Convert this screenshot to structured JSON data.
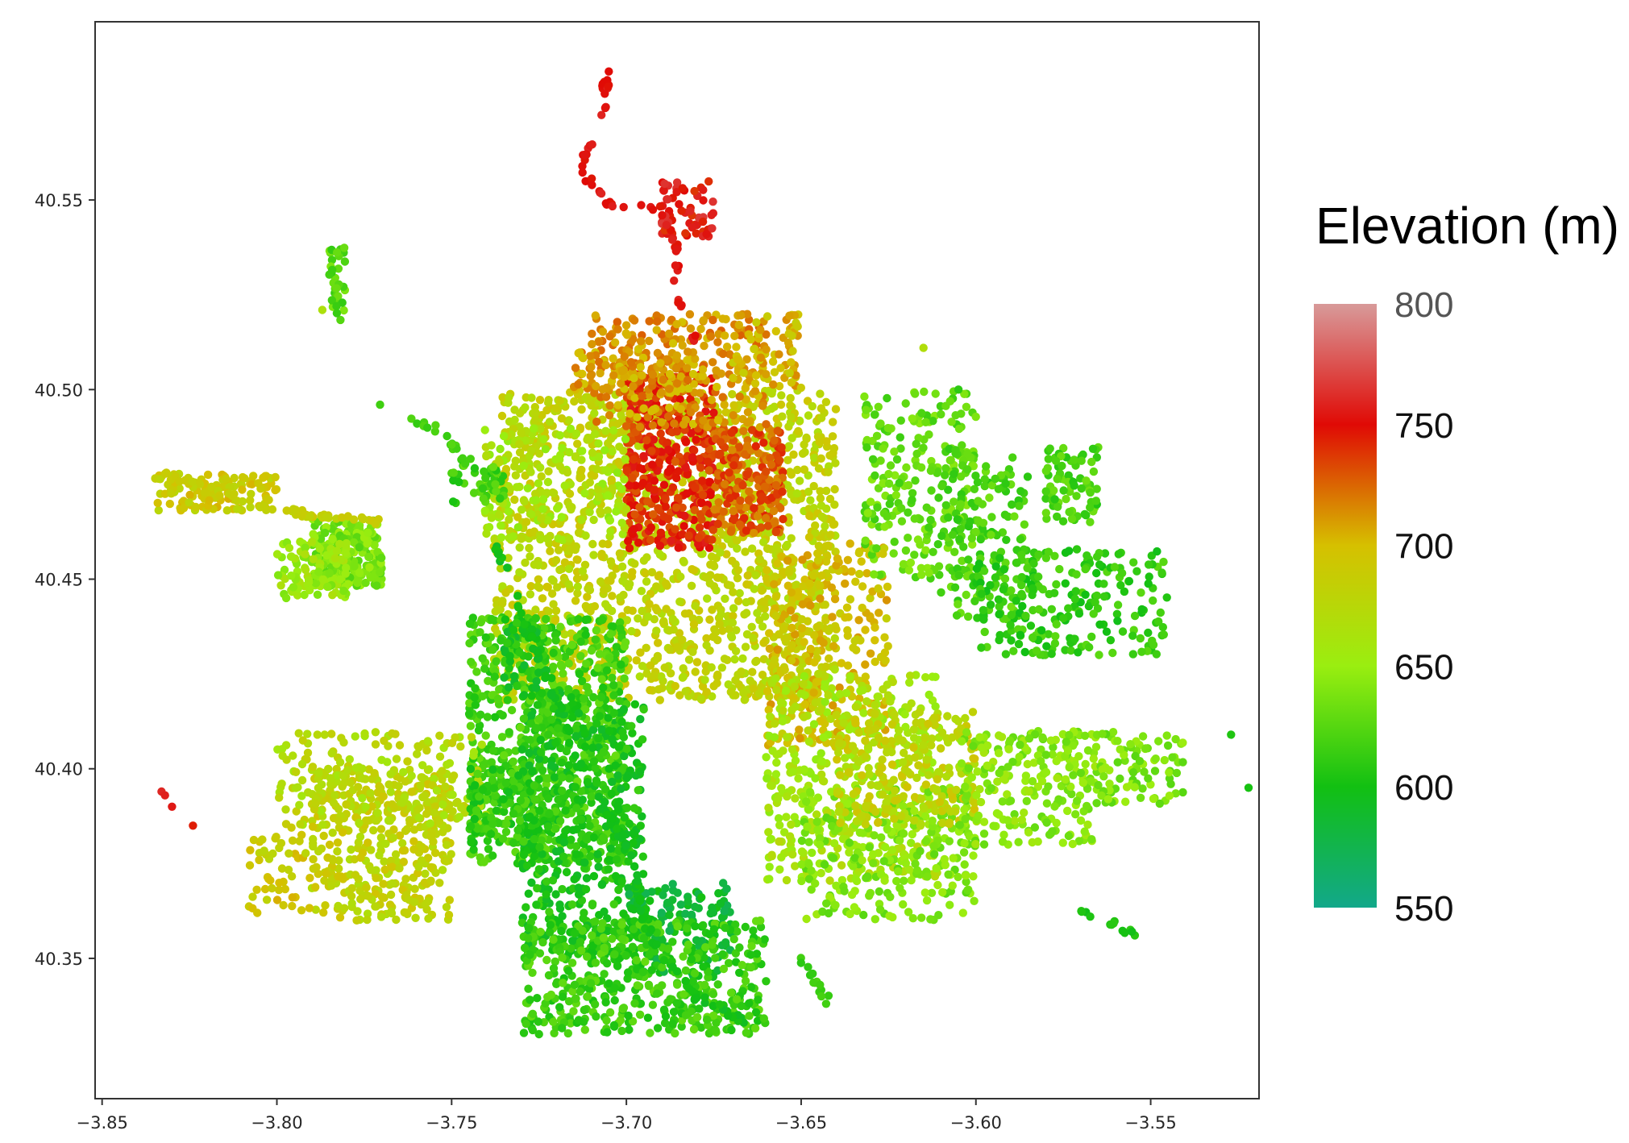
{
  "chart_data": {
    "type": "scatter",
    "title": "",
    "xlabel": "",
    "ylabel": "",
    "xlim": [
      -3.852,
      -3.519
    ],
    "ylim": [
      40.313,
      40.597
    ],
    "xticks": [
      -3.85,
      -3.8,
      -3.75,
      -3.7,
      -3.65,
      -3.6,
      -3.55
    ],
    "xtick_labels": [
      "−3.85",
      "−3.80",
      "−3.75",
      "−3.70",
      "−3.65",
      "−3.60",
      "−3.55"
    ],
    "yticks": [
      40.35,
      40.4,
      40.45,
      40.5,
      40.55
    ],
    "ytick_labels": [
      "40.35",
      "40.40",
      "40.45",
      "40.50",
      "40.55"
    ],
    "grid": false,
    "color_variable": "Elevation (m)",
    "colorbar": {
      "title": "Elevation (m)",
      "range": [
        550,
        800
      ],
      "ticks": [
        800,
        750,
        700,
        650,
        600,
        550
      ],
      "tick_labels": [
        "800",
        "750",
        "700",
        "650",
        "600",
        "550"
      ],
      "stops": [
        {
          "value": 550,
          "color": "#12a88a"
        },
        {
          "value": 600,
          "color": "#12c012"
        },
        {
          "value": 650,
          "color": "#9aee10"
        },
        {
          "value": 700,
          "color": "#d6c000"
        },
        {
          "value": 750,
          "color": "#e00a05"
        },
        {
          "value": 800,
          "color": "#d89a9a"
        }
      ]
    },
    "series": [
      {
        "clusters": [
          {
            "x": [
              -3.738,
              -3.64
            ],
            "y": [
              40.5,
              40.418
            ],
            "elev": 680,
            "n": 1500
          },
          {
            "x": [
              -3.7,
              -3.675
            ],
            "y": [
              40.505,
              40.458
            ],
            "elev": 742,
            "n": 420
          },
          {
            "x": [
              -3.675,
              -3.655
            ],
            "y": [
              40.49,
              40.462
            ],
            "elev": 728,
            "n": 220
          },
          {
            "x": [
              -3.66,
              -3.625
            ],
            "y": [
              40.46,
              40.405
            ],
            "elev": 698,
            "n": 300
          },
          {
            "x": [
              -3.71,
              -3.66
            ],
            "y": [
              40.52,
              40.49
            ],
            "elev": 712,
            "n": 260
          },
          {
            "x": [
              -3.715,
              -3.68
            ],
            "y": [
              40.51,
              40.5
            ],
            "elev": 708,
            "n": 90
          },
          {
            "x": [
              -3.741,
              -3.7
            ],
            "y": [
              40.49,
              40.46
            ],
            "elev": 660,
            "n": 180
          },
          {
            "x": [
              -3.632,
              -3.6
            ],
            "y": [
              40.5,
              40.45
            ],
            "elev": 630,
            "n": 230
          },
          {
            "x": [
              -3.61,
              -3.585
            ],
            "y": [
              40.485,
              40.44
            ],
            "elev": 622,
            "n": 150
          },
          {
            "x": [
              -3.6,
              -3.545
            ],
            "y": [
              40.458,
              40.43
            ],
            "elev": 612,
            "n": 240
          },
          {
            "x": [
              -3.58,
              -3.565
            ],
            "y": [
              40.485,
              40.465
            ],
            "elev": 620,
            "n": 80
          },
          {
            "x": [
              -3.745,
              -3.7
            ],
            "y": [
              40.44,
              40.375
            ],
            "elev": 618,
            "n": 700
          },
          {
            "x": [
              -3.73,
              -3.695
            ],
            "y": [
              40.42,
              40.35
            ],
            "elev": 603,
            "n": 520
          },
          {
            "x": [
              -3.7,
              -3.67
            ],
            "y": [
              40.37,
              40.345
            ],
            "elev": 588,
            "n": 140
          },
          {
            "x": [
              -3.73,
              -3.66
            ],
            "y": [
              40.36,
              40.33
            ],
            "elev": 616,
            "n": 460
          },
          {
            "x": [
              -3.66,
              -3.61
            ],
            "y": [
              40.425,
              40.37
            ],
            "elev": 660,
            "n": 420
          },
          {
            "x": [
              -3.65,
              -3.6
            ],
            "y": [
              40.395,
              40.36
            ],
            "elev": 640,
            "n": 260
          },
          {
            "x": [
              -3.64,
              -3.6
            ],
            "y": [
              40.415,
              40.385
            ],
            "elev": 682,
            "n": 220
          },
          {
            "x": [
              -3.605,
              -3.565
            ],
            "y": [
              40.41,
              40.38
            ],
            "elev": 645,
            "n": 210
          },
          {
            "x": [
              -3.575,
              -3.54
            ],
            "y": [
              40.41,
              40.39
            ],
            "elev": 640,
            "n": 110
          },
          {
            "x": [
              -3.79,
              -3.75
            ],
            "y": [
              40.4,
              40.36
            ],
            "elev": 682,
            "n": 380
          },
          {
            "x": [
              -3.8,
              -3.74
            ],
            "y": [
              40.41,
              40.385
            ],
            "elev": 672,
            "n": 200
          },
          {
            "x": [
              -3.808,
              -3.79
            ],
            "y": [
              40.385,
              40.362
            ],
            "elev": 690,
            "n": 50
          },
          {
            "x": [
              -3.79,
              -3.77
            ],
            "y": [
              40.466,
              40.448
            ],
            "elev": 638,
            "n": 230
          },
          {
            "x": [
              -3.8,
              -3.78
            ],
            "y": [
              40.46,
              40.445
            ],
            "elev": 652,
            "n": 100
          },
          {
            "x": [
              -3.835,
              -3.8
            ],
            "y": [
              40.478,
              40.468
            ],
            "elev": 690,
            "n": 110
          },
          {
            "x": [
              -3.75,
              -3.735
            ],
            "y": [
              40.48,
              40.47
            ],
            "elev": 618,
            "n": 40
          },
          {
            "x": [
              -3.735,
              -3.725
            ],
            "y": [
              40.44,
              40.42
            ],
            "elev": 600,
            "n": 50
          },
          {
            "x": [
              -3.745,
              -3.725
            ],
            "y": [
              40.4,
              40.38
            ],
            "elev": 610,
            "n": 120
          },
          {
            "x": [
              -3.785,
              -3.78
            ],
            "y": [
              40.538,
              40.518
            ],
            "elev": 625,
            "n": 35
          },
          {
            "x": [
              -3.69,
              -3.675
            ],
            "y": [
              40.555,
              40.54
            ],
            "elev": 752,
            "n": 60
          },
          {
            "x": [
              -3.67,
              -3.65
            ],
            "y": [
              40.52,
              40.5
            ],
            "elev": 700,
            "n": 80
          }
        ],
        "paths": [
          {
            "points": [
              [
                -3.738,
                40.46
              ],
              [
                -3.725,
                40.43
              ],
              [
                -3.713,
                40.4
              ],
              [
                -3.7,
                40.38
              ],
              [
                -3.693,
                40.355
              ],
              [
                -3.68,
                40.34
              ],
              [
                -3.665,
                40.333
              ]
            ],
            "elev": 598,
            "n": 120
          },
          {
            "points": [
              [
                -3.706,
                40.585
              ],
              [
                -3.706,
                40.575
              ],
              [
                -3.71,
                40.565
              ],
              [
                -3.713,
                40.558
              ],
              [
                -3.705,
                40.549
              ],
              [
                -3.69,
                40.548
              ],
              [
                -3.686,
                40.54
              ],
              [
                -3.686,
                40.528
              ],
              [
                -3.683,
                40.518
              ],
              [
                -3.678,
                40.508
              ]
            ],
            "elev": 752,
            "n": 60
          },
          {
            "points": [
              [
                -3.835,
                40.478
              ],
              [
                -3.8,
                40.468
              ],
              [
                -3.77,
                40.465
              ]
            ],
            "elev": 685,
            "n": 60
          },
          {
            "points": [
              [
                -3.65,
                40.35
              ],
              [
                -3.64,
                40.335
              ]
            ],
            "elev": 615,
            "n": 14
          },
          {
            "points": [
              [
                -3.57,
                40.362
              ],
              [
                -3.555,
                40.357
              ]
            ],
            "elev": 605,
            "n": 14
          },
          {
            "points": [
              [
                -3.77,
                40.496
              ],
              [
                -3.752,
                40.489
              ],
              [
                -3.745,
                40.48
              ]
            ],
            "elev": 618,
            "n": 20
          }
        ],
        "points": [
          {
            "x": -3.833,
            "y": 40.394,
            "elev": 760
          },
          {
            "x": -3.832,
            "y": 40.393,
            "elev": 758
          },
          {
            "x": -3.83,
            "y": 40.39,
            "elev": 755
          },
          {
            "x": -3.824,
            "y": 40.385,
            "elev": 745
          },
          {
            "x": -3.787,
            "y": 40.521,
            "elev": 665
          },
          {
            "x": -3.615,
            "y": 40.511,
            "elev": 668
          },
          {
            "x": -3.527,
            "y": 40.409,
            "elev": 605
          },
          {
            "x": -3.522,
            "y": 40.395,
            "elev": 602
          },
          {
            "x": -3.605,
            "y": 40.5,
            "elev": 610
          }
        ]
      }
    ]
  }
}
